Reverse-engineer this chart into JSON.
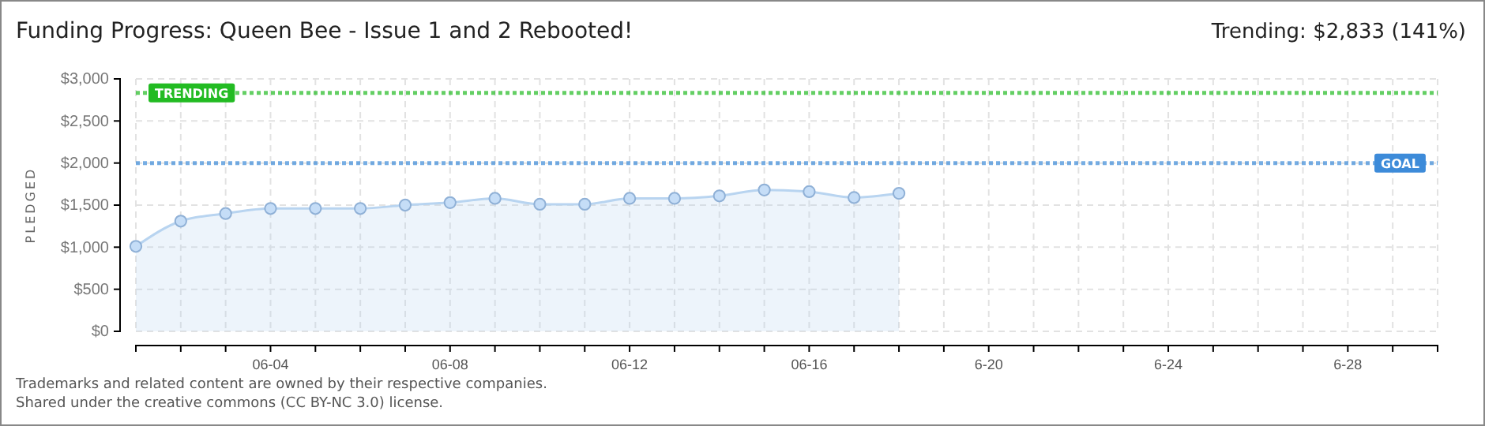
{
  "chart_data": {
    "type": "area",
    "title": "Funding Progress: Queen Bee - Issue 1 and 2 Rebooted!",
    "subtitle": "Trending: $2,833 (141%)",
    "ylabel": "PLEDGED",
    "x": [
      "--06-01",
      "--06-02",
      "--06-03",
      "--06-04",
      "--06-05",
      "--06-06",
      "--06-07",
      "--06-08",
      "--06-09",
      "--06-10",
      "--06-11",
      "--06-12",
      "--06-13",
      "--06-14",
      "--06-15",
      "--06-16",
      "--06-17",
      "--06-18"
    ],
    "series": [
      {
        "color": "#b8d4f0",
        "values": [
          1010,
          1310,
          1400,
          1460,
          1460,
          1460,
          1500,
          1530,
          1580,
          1510,
          1510,
          1580,
          1580,
          1610,
          1680,
          1660,
          1590,
          1640
        ]
      }
    ],
    "marker": "circle",
    "grid": true,
    "xlim": [
      "--06-01",
      "--06-30"
    ],
    "xticks": [
      {
        "value": "--06-01",
        "label": null
      },
      {
        "value": "--06-02",
        "label": null
      },
      {
        "value": "--06-03",
        "label": null
      },
      {
        "value": "--06-04",
        "label": "06-04"
      },
      {
        "value": "--06-05",
        "label": null
      },
      {
        "value": "--06-06",
        "label": null
      },
      {
        "value": "--06-07",
        "label": null
      },
      {
        "value": "--06-08",
        "label": "06-08"
      },
      {
        "value": "--06-09",
        "label": null
      },
      {
        "value": "--06-10",
        "label": null
      },
      {
        "value": "--06-11",
        "label": null
      },
      {
        "value": "--06-12",
        "label": "06-12"
      },
      {
        "value": "--06-13",
        "label": null
      },
      {
        "value": "--06-14",
        "label": null
      },
      {
        "value": "--06-15",
        "label": null
      },
      {
        "value": "--06-16",
        "label": "06-16"
      },
      {
        "value": "--06-17",
        "label": null
      },
      {
        "value": "--06-18",
        "label": null
      },
      {
        "value": "--06-19",
        "label": null
      },
      {
        "value": "--06-20",
        "label": "6-20"
      },
      {
        "value": "--06-21",
        "label": null
      },
      {
        "value": "--06-22",
        "label": null
      },
      {
        "value": "--06-23",
        "label": null
      },
      {
        "value": "--06-24",
        "label": "6-24"
      },
      {
        "value": "--06-25",
        "label": null
      },
      {
        "value": "--06-26",
        "label": null
      },
      {
        "value": "--06-27",
        "label": null
      },
      {
        "value": "--06-28",
        "label": "6-28"
      },
      {
        "value": "--06-29",
        "label": null
      },
      {
        "value": "--06-30",
        "label": null
      }
    ],
    "ylim": [
      0,
      3000
    ],
    "yticks": [
      {
        "value": 0,
        "label": "$0"
      },
      {
        "value": 500,
        "label": "$500"
      },
      {
        "value": 1000,
        "label": "$1,000"
      },
      {
        "value": 1500,
        "label": "$1,500"
      },
      {
        "value": 2000,
        "label": "$2,000"
      },
      {
        "value": 2500,
        "label": "$2,500"
      },
      {
        "value": 3000,
        "label": "$3,000"
      }
    ],
    "ref_lines": [
      {
        "axis": "y",
        "value": 2833,
        "label": "TRENDING",
        "color": "#22bb22"
      },
      {
        "axis": "y",
        "value": 2000,
        "label": "GOAL",
        "color": "#3d8bd9"
      }
    ],
    "annotations": [
      "Trademarks and related content are owned by their respective companies.",
      "Shared under the creative commons (CC BY-NC 3.0) license."
    ]
  }
}
